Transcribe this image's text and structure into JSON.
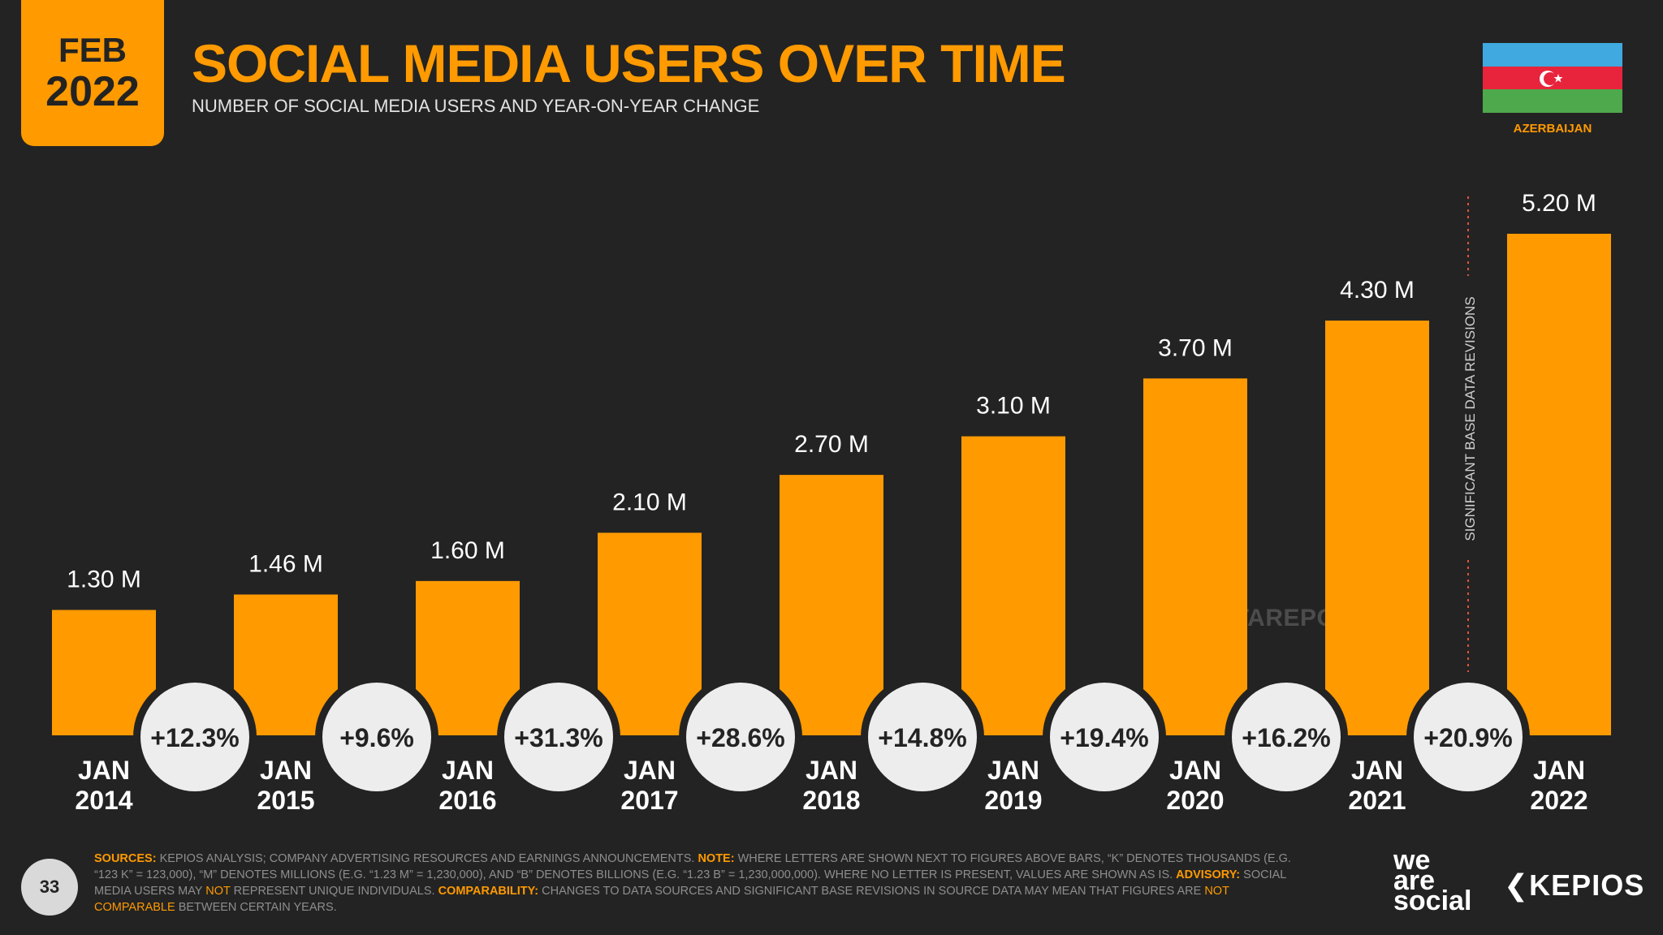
{
  "header": {
    "month": "FEB",
    "year": "2022",
    "title": "SOCIAL MEDIA USERS OVER TIME",
    "subtitle": "NUMBER OF SOCIAL MEDIA USERS AND YEAR-ON-YEAR CHANGE"
  },
  "country": {
    "name": "AZERBAIJAN",
    "flag_colors": [
      "#3FA9E0",
      "#E8243C",
      "#4EA84C"
    ]
  },
  "chart_data": {
    "type": "bar",
    "title": "SOCIAL MEDIA USERS OVER TIME",
    "unit": "millions",
    "ylim": [
      0,
      5.2
    ],
    "categories": [
      {
        "month": "JAN",
        "year": "2014"
      },
      {
        "month": "JAN",
        "year": "2015"
      },
      {
        "month": "JAN",
        "year": "2016"
      },
      {
        "month": "JAN",
        "year": "2017"
      },
      {
        "month": "JAN",
        "year": "2018"
      },
      {
        "month": "JAN",
        "year": "2019"
      },
      {
        "month": "JAN",
        "year": "2020"
      },
      {
        "month": "JAN",
        "year": "2021"
      },
      {
        "month": "JAN",
        "year": "2022"
      }
    ],
    "values": [
      1.3,
      1.46,
      1.6,
      2.1,
      2.7,
      3.1,
      3.7,
      4.3,
      5.2
    ],
    "value_labels": [
      "1.30 M",
      "1.46 M",
      "1.60 M",
      "2.10 M",
      "2.70 M",
      "3.10 M",
      "3.70 M",
      "4.30 M",
      "5.20 M"
    ],
    "yoy_change": [
      "+12.3%",
      "+9.6%",
      "+31.3%",
      "+28.6%",
      "+14.8%",
      "+19.4%",
      "+16.2%",
      "+20.9%"
    ],
    "revision_note": "SIGNIFICANT BASE DATA REVISIONS",
    "bar_color": "#FF9A00"
  },
  "watermark": "DATAREPORTAL",
  "footer": {
    "page_number": "33",
    "sources_label": "SOURCES:",
    "sources_text": "KEPIOS ANALYSIS; COMPANY ADVERTISING RESOURCES AND EARNINGS ANNOUNCEMENTS.",
    "note_label": "NOTE:",
    "note_text": "WHERE LETTERS ARE SHOWN NEXT TO FIGURES ABOVE BARS, “K” DENOTES THOUSANDS (E.G. “123 K” = 123,000), “M” DENOTES MILLIONS (E.G. “1.23 M” = 1,230,000), AND “B” DENOTES BILLIONS (E.G. “1.23 B” = 1,230,000,000). WHERE NO LETTER IS PRESENT, VALUES ARE SHOWN AS IS.",
    "advisory_label": "ADVISORY:",
    "advisory_text_1": "SOCIAL MEDIA USERS MAY",
    "advisory_not": "NOT",
    "advisory_text_2": "REPRESENT UNIQUE INDIVIDUALS.",
    "comparability_label": "COMPARABILITY:",
    "comparability_text": "CHANGES TO DATA SOURCES AND SIGNIFICANT BASE REVISIONS IN SOURCE DATA MAY MEAN THAT FIGURES ARE",
    "comparability_not": "NOT COMPARABLE",
    "comparability_end": "BETWEEN CERTAIN YEARS."
  },
  "branding": {
    "we": "we",
    "are": "are",
    "social": "social",
    "kepios": "KEPIOS"
  }
}
